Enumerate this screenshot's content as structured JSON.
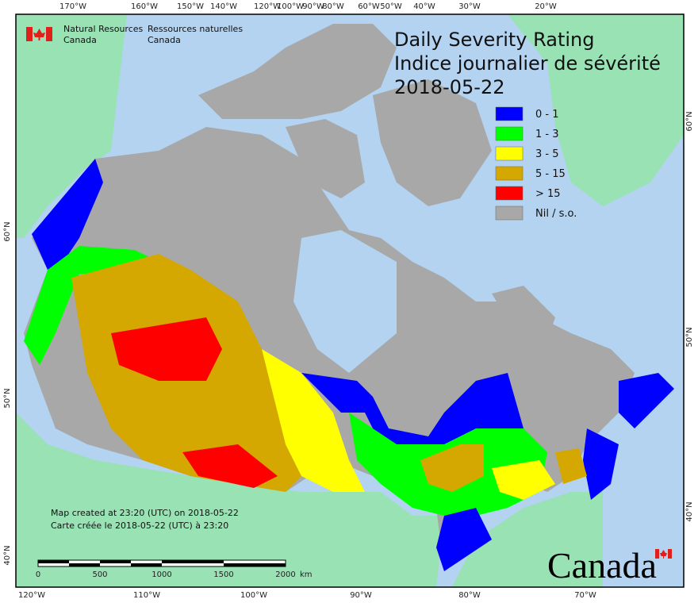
{
  "header": {
    "agency_en": [
      "Natural Resources",
      "Canada"
    ],
    "agency_fr": [
      "Ressources naturelles",
      "Canada"
    ]
  },
  "title": [
    "Daily Severity Rating",
    "Indice journalier de sévérité",
    "2018-05-22"
  ],
  "legend": [
    {
      "label": "0 - 1",
      "color": "#0000ff"
    },
    {
      "label": "1 - 3",
      "color": "#00ff00"
    },
    {
      "label": "3 - 5",
      "color": "#ffff00"
    },
    {
      "label": "5 - 15",
      "color": "#d4a800"
    },
    {
      "label": "> 15",
      "color": "#ff0000"
    },
    {
      "label": "Nil / s.o.",
      "color": "#a8a8a8"
    }
  ],
  "graticule": {
    "top": [
      "170°W",
      "160°W",
      "150°W",
      "140°W",
      "120°W",
      "100°W",
      "90°W",
      "80°W",
      "60°W",
      "50°W",
      "40°W",
      "30°W",
      "20°W"
    ],
    "bottom": [
      "120°W",
      "110°W",
      "100°W",
      "90°W",
      "80°W",
      "70°W"
    ],
    "left": [
      "60°N",
      "50°N",
      "40°N"
    ],
    "right": [
      "60°N",
      "50°N",
      "40°N"
    ]
  },
  "footer": {
    "created": [
      "Map created at 23:20 (UTC) on 2018-05-22",
      "Carte créée le 2018-05-22 (UTC) à 23:20"
    ],
    "scale": {
      "labels": [
        "0",
        "500",
        "1000",
        "1500",
        "2000"
      ],
      "unit": "km"
    },
    "wordmark": "Canada"
  }
}
